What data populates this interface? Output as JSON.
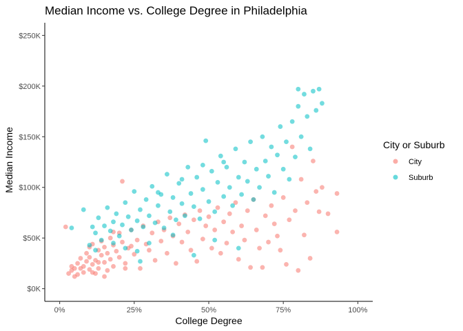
{
  "chart_data": {
    "type": "scatter",
    "title": "Median Income vs. College Degree in Philadelphia",
    "xlabel": "College Degree",
    "ylabel": "Median Income",
    "xlim": [
      0,
      1
    ],
    "ylim": [
      0,
      250000
    ],
    "x_ticks": [
      0,
      0.25,
      0.5,
      0.75,
      1.0
    ],
    "x_tick_labels": [
      "0%",
      "25%",
      "50%",
      "75%",
      "100%"
    ],
    "y_ticks": [
      0,
      50000,
      100000,
      150000,
      200000,
      250000
    ],
    "y_tick_labels": [
      "$0K",
      "$50K",
      "$100K",
      "$150K",
      "$200K",
      "$250K"
    ],
    "grid": false,
    "legend": {
      "title": "City or Suburb",
      "position": "right"
    },
    "series": [
      {
        "name": "City",
        "color": "#F8766D",
        "points": [
          [
            0.02,
            61000
          ],
          [
            0.03,
            15000
          ],
          [
            0.04,
            22000
          ],
          [
            0.05,
            12000
          ],
          [
            0.04,
            18000
          ],
          [
            0.06,
            25000
          ],
          [
            0.05,
            20000
          ],
          [
            0.06,
            14000
          ],
          [
            0.07,
            30000
          ],
          [
            0.08,
            16000
          ],
          [
            0.08,
            22000
          ],
          [
            0.09,
            35000
          ],
          [
            0.09,
            27000
          ],
          [
            0.1,
            19000
          ],
          [
            0.1,
            31000
          ],
          [
            0.11,
            44000
          ],
          [
            0.11,
            24000
          ],
          [
            0.12,
            15000
          ],
          [
            0.12,
            28000
          ],
          [
            0.13,
            38000
          ],
          [
            0.13,
            20000
          ],
          [
            0.14,
            47000
          ],
          [
            0.14,
            33000
          ],
          [
            0.15,
            26000
          ],
          [
            0.15,
            41000
          ],
          [
            0.16,
            18000
          ],
          [
            0.16,
            35000
          ],
          [
            0.17,
            50000
          ],
          [
            0.17,
            29000
          ],
          [
            0.18,
            43000
          ],
          [
            0.18,
            22000
          ],
          [
            0.19,
            37000
          ],
          [
            0.2,
            55000
          ],
          [
            0.2,
            31000
          ],
          [
            0.21,
            106000
          ],
          [
            0.21,
            46000
          ],
          [
            0.22,
            25000
          ],
          [
            0.23,
            40000
          ],
          [
            0.24,
            58000
          ],
          [
            0.25,
            34000
          ],
          [
            0.26,
            48000
          ],
          [
            0.27,
            20000
          ],
          [
            0.28,
            62000
          ],
          [
            0.29,
            44000
          ],
          [
            0.3,
            38000
          ],
          [
            0.31,
            55000
          ],
          [
            0.32,
            28000
          ],
          [
            0.33,
            66000
          ],
          [
            0.34,
            47000
          ],
          [
            0.35,
            58000
          ],
          [
            0.36,
            35000
          ],
          [
            0.37,
            70000
          ],
          [
            0.38,
            52000
          ],
          [
            0.39,
            25000
          ],
          [
            0.4,
            64000
          ],
          [
            0.41,
            46000
          ],
          [
            0.42,
            73000
          ],
          [
            0.43,
            56000
          ],
          [
            0.44,
            38000
          ],
          [
            0.45,
            68000
          ],
          [
            0.46,
            27000
          ],
          [
            0.47,
            77000
          ],
          [
            0.48,
            49000
          ],
          [
            0.49,
            62000
          ],
          [
            0.5,
            71000
          ],
          [
            0.51,
            40000
          ],
          [
            0.52,
            58000
          ],
          [
            0.53,
            80000
          ],
          [
            0.54,
            35000
          ],
          [
            0.55,
            66000
          ],
          [
            0.56,
            45000
          ],
          [
            0.57,
            74000
          ],
          [
            0.58,
            56000
          ],
          [
            0.59,
            85000
          ],
          [
            0.6,
            29000
          ],
          [
            0.61,
            62000
          ],
          [
            0.62,
            48000
          ],
          [
            0.63,
            77000
          ],
          [
            0.64,
            21000
          ],
          [
            0.65,
            88000
          ],
          [
            0.66,
            58000
          ],
          [
            0.67,
            40000
          ],
          [
            0.68,
            21000
          ],
          [
            0.69,
            72000
          ],
          [
            0.7,
            46000
          ],
          [
            0.71,
            82000
          ],
          [
            0.72,
            64000
          ],
          [
            0.73,
            52000
          ],
          [
            0.74,
            38000
          ],
          [
            0.75,
            90000
          ],
          [
            0.76,
            24000
          ],
          [
            0.77,
            68000
          ],
          [
            0.78,
            140000
          ],
          [
            0.79,
            77000
          ],
          [
            0.8,
            18000
          ],
          [
            0.81,
            108000
          ],
          [
            0.82,
            53000
          ],
          [
            0.83,
            85000
          ],
          [
            0.84,
            30000
          ],
          [
            0.85,
            126000
          ],
          [
            0.86,
            96000
          ],
          [
            0.87,
            76000
          ],
          [
            0.88,
            100000
          ],
          [
            0.9,
            74000
          ],
          [
            0.93,
            94000
          ],
          [
            0.93,
            56000
          ],
          [
            0.15,
            12000
          ],
          [
            0.22,
            20000
          ],
          [
            0.1,
            41000
          ],
          [
            0.13,
            26000
          ],
          [
            0.07,
            20000
          ],
          [
            0.18,
            56000
          ],
          [
            0.24,
            42000
          ],
          [
            0.11,
            16000
          ]
        ]
      },
      {
        "name": "Suburb",
        "color": "#00BFC4",
        "points": [
          [
            0.04,
            60000
          ],
          [
            0.08,
            78000
          ],
          [
            0.1,
            43000
          ],
          [
            0.11,
            61000
          ],
          [
            0.12,
            55000
          ],
          [
            0.13,
            70000
          ],
          [
            0.14,
            48000
          ],
          [
            0.15,
            62000
          ],
          [
            0.16,
            80000
          ],
          [
            0.17,
            57000
          ],
          [
            0.18,
            66000
          ],
          [
            0.19,
            74000
          ],
          [
            0.2,
            52000
          ],
          [
            0.21,
            63000
          ],
          [
            0.22,
            85000
          ],
          [
            0.23,
            71000
          ],
          [
            0.24,
            58000
          ],
          [
            0.25,
            96000
          ],
          [
            0.26,
            67000
          ],
          [
            0.27,
            78000
          ],
          [
            0.28,
            61000
          ],
          [
            0.29,
            88000
          ],
          [
            0.3,
            72000
          ],
          [
            0.31,
            101000
          ],
          [
            0.32,
            65000
          ],
          [
            0.33,
            82000
          ],
          [
            0.34,
            93000
          ],
          [
            0.35,
            60000
          ],
          [
            0.36,
            113000
          ],
          [
            0.37,
            76000
          ],
          [
            0.38,
            90000
          ],
          [
            0.39,
            68000
          ],
          [
            0.4,
            104000
          ],
          [
            0.41,
            84000
          ],
          [
            0.42,
            72000
          ],
          [
            0.43,
            120000
          ],
          [
            0.44,
            94000
          ],
          [
            0.45,
            81000
          ],
          [
            0.46,
            110000
          ],
          [
            0.47,
            69000
          ],
          [
            0.48,
            98000
          ],
          [
            0.49,
            146000
          ],
          [
            0.5,
            86000
          ],
          [
            0.51,
            116000
          ],
          [
            0.52,
            76000
          ],
          [
            0.53,
            105000
          ],
          [
            0.54,
            131000
          ],
          [
            0.55,
            91000
          ],
          [
            0.56,
            120000
          ],
          [
            0.57,
            100000
          ],
          [
            0.58,
            82000
          ],
          [
            0.59,
            138000
          ],
          [
            0.6,
            110000
          ],
          [
            0.61,
            93000
          ],
          [
            0.62,
            125000
          ],
          [
            0.63,
            106000
          ],
          [
            0.64,
            145000
          ],
          [
            0.65,
            88000
          ],
          [
            0.66,
            118000
          ],
          [
            0.67,
            100000
          ],
          [
            0.68,
            150000
          ],
          [
            0.69,
            126000
          ],
          [
            0.7,
            111000
          ],
          [
            0.71,
            140000
          ],
          [
            0.72,
            95000
          ],
          [
            0.73,
            132000
          ],
          [
            0.74,
            160000
          ],
          [
            0.75,
            118000
          ],
          [
            0.76,
            145000
          ],
          [
            0.77,
            108000
          ],
          [
            0.78,
            165000
          ],
          [
            0.79,
            130000
          ],
          [
            0.8,
            180000
          ],
          [
            0.81,
            150000
          ],
          [
            0.82,
            192000
          ],
          [
            0.83,
            170000
          ],
          [
            0.84,
            138000
          ],
          [
            0.85,
            195000
          ],
          [
            0.86,
            176000
          ],
          [
            0.87,
            197000
          ],
          [
            0.88,
            183000
          ],
          [
            0.8,
            197000
          ],
          [
            0.26,
            37000
          ],
          [
            0.3,
            45000
          ],
          [
            0.38,
            53000
          ],
          [
            0.45,
            33000
          ],
          [
            0.52,
            48000
          ],
          [
            0.6,
            40000
          ],
          [
            0.12,
            38000
          ],
          [
            0.18,
            45000
          ],
          [
            0.22,
            40000
          ],
          [
            0.27,
            27000
          ],
          [
            0.33,
            95000
          ],
          [
            0.41,
            108000
          ],
          [
            0.48,
            122000
          ],
          [
            0.55,
            125000
          ]
        ]
      }
    ]
  }
}
